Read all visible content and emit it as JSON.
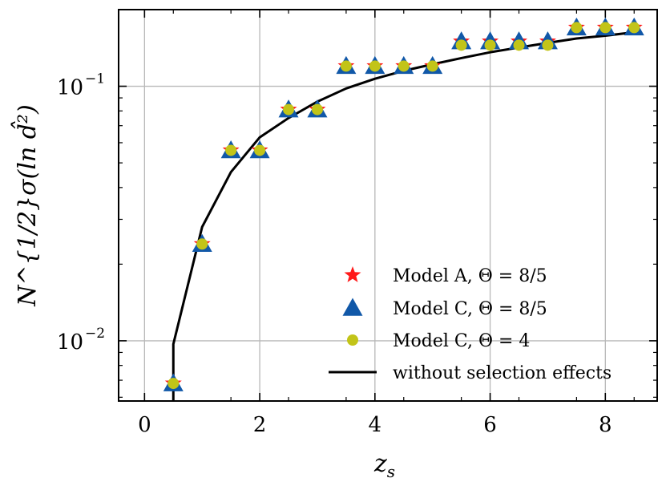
{
  "chart_data": {
    "type": "scatter",
    "xlabel": "z",
    "xlabel_sub": "s",
    "ylabel": "N^{1/2}σ(ln d̂²)",
    "xlim": [
      -0.45,
      8.9
    ],
    "ylim": [
      0.0058,
      0.2
    ],
    "yscale": "log",
    "grid": true,
    "legend_position": "lower-right",
    "x_ticks": [
      0,
      2,
      4,
      6,
      8
    ],
    "x_tick_labels": [
      "0",
      "2",
      "4",
      "6",
      "8"
    ],
    "y_major_ticks": [
      {
        "value": 0.1,
        "base": "10",
        "exponent": "−1"
      },
      {
        "value": 0.01,
        "base": "10",
        "exponent": "−2"
      }
    ],
    "x": [
      0.5,
      1.0,
      1.5,
      2.0,
      2.5,
      3.0,
      3.5,
      4.0,
      4.5,
      5.0,
      5.5,
      6.0,
      6.5,
      7.0,
      7.5,
      8.0,
      8.5
    ],
    "series": [
      {
        "name": "Model A, Θ = 8/5",
        "marker": "star",
        "color": "#ff1a1a",
        "values": [
          0.0068,
          0.024,
          0.056,
          0.056,
          0.081,
          0.081,
          0.12,
          0.12,
          0.12,
          0.12,
          0.15,
          0.15,
          0.15,
          0.15,
          0.17,
          0.17,
          0.17
        ]
      },
      {
        "name": "Model C, Θ = 8/5",
        "marker": "triangle",
        "color": "#1158a8",
        "values": [
          0.0068,
          0.024,
          0.056,
          0.056,
          0.081,
          0.081,
          0.12,
          0.12,
          0.12,
          0.12,
          0.15,
          0.15,
          0.15,
          0.15,
          0.17,
          0.17,
          0.17
        ]
      },
      {
        "name": "Model C, Θ = 4",
        "marker": "circle",
        "color": "#c2c418",
        "values": [
          0.0068,
          0.024,
          0.056,
          0.056,
          0.081,
          0.081,
          0.12,
          0.12,
          0.12,
          0.12,
          0.145,
          0.145,
          0.145,
          0.145,
          0.17,
          0.17,
          0.17
        ]
      },
      {
        "name": "without selection effects",
        "marker": "line",
        "color": "#000000",
        "x": [
          0.5,
          0.5,
          1.0,
          1.5,
          2.0,
          2.5,
          3.0,
          3.5,
          4.0,
          4.5,
          5.0,
          5.5,
          6.0,
          6.5,
          7.0,
          7.5,
          8.0,
          8.5
        ],
        "values": [
          0.0058,
          0.0097,
          0.028,
          0.046,
          0.063,
          0.075,
          0.087,
          0.098,
          0.107,
          0.115,
          0.122,
          0.129,
          0.136,
          0.142,
          0.148,
          0.154,
          0.158,
          0.163
        ]
      }
    ]
  }
}
